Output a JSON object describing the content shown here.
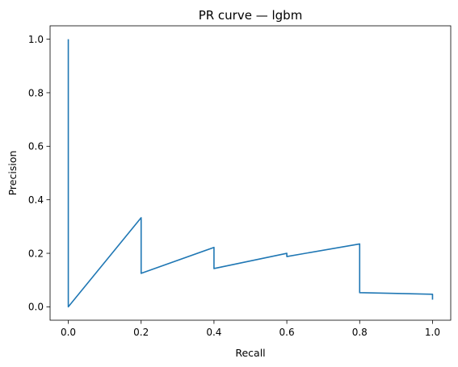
{
  "chart_data": {
    "type": "line",
    "title": "PR curve — lgbm",
    "xlabel": "Recall",
    "ylabel": "Precision",
    "xlim": [
      -0.05,
      1.05
    ],
    "ylim": [
      -0.05,
      1.05
    ],
    "xticks": [
      0.0,
      0.2,
      0.4,
      0.6,
      0.8,
      1.0
    ],
    "xtick_labels": [
      "0.0",
      "0.2",
      "0.4",
      "0.6",
      "0.8",
      "1.0"
    ],
    "yticks": [
      0.0,
      0.2,
      0.4,
      0.6,
      0.8,
      1.0
    ],
    "ytick_labels": [
      "0.0",
      "0.2",
      "0.4",
      "0.6",
      "0.8",
      "1.0"
    ],
    "grid": false,
    "series": [
      {
        "color": "#1f77b4",
        "x": [
          0.0,
          0.0,
          0.2,
          0.2,
          0.4,
          0.4,
          0.6,
          0.6,
          0.8,
          0.8,
          1.0,
          1.0
        ],
        "y": [
          1.0,
          0.0,
          0.333,
          0.125,
          0.222,
          0.143,
          0.2,
          0.188,
          0.235,
          0.053,
          0.047,
          0.027
        ]
      }
    ]
  }
}
